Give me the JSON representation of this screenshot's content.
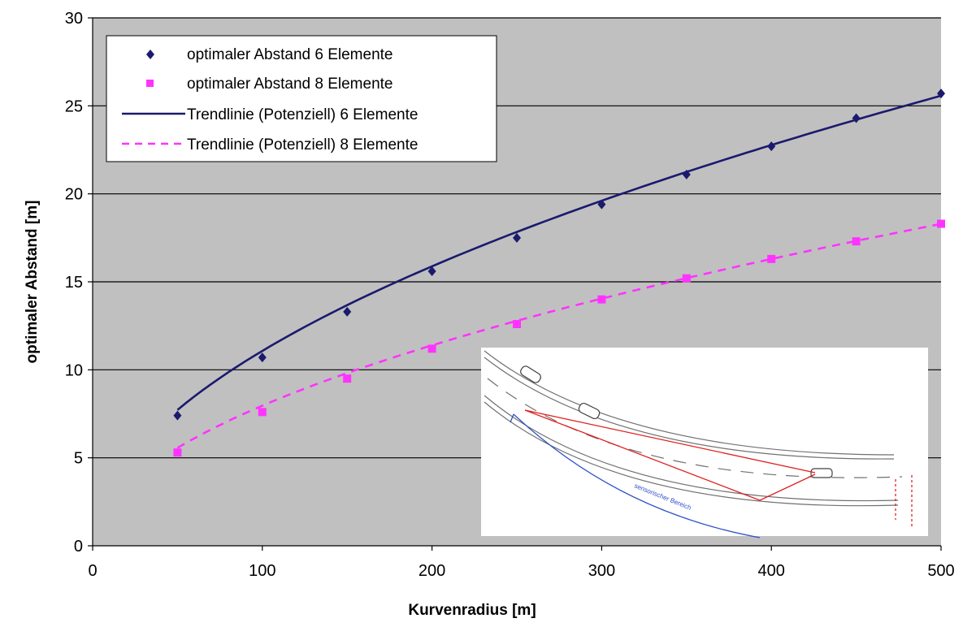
{
  "chart_data": {
    "type": "scatter",
    "title": "",
    "xlabel": "Kurvenradius [m]",
    "ylabel": "optimaler Abstand [m]",
    "xlim": [
      0,
      500
    ],
    "ylim": [
      0,
      30
    ],
    "x_ticks": [
      0,
      100,
      200,
      300,
      400,
      500
    ],
    "y_ticks": [
      0,
      5,
      10,
      15,
      20,
      25,
      30
    ],
    "grid": "horizontal",
    "plot_background": "#c0c0c0",
    "legend_position": "top-left",
    "x": [
      50,
      100,
      150,
      200,
      250,
      300,
      350,
      400,
      450,
      500
    ],
    "series": [
      {
        "name": "optimaler Abstand 6 Elemente",
        "kind": "markers",
        "marker": "diamond",
        "color": "#1a1a6e",
        "values": [
          7.4,
          10.7,
          13.3,
          15.6,
          17.5,
          19.4,
          21.1,
          22.7,
          24.3,
          25.7
        ]
      },
      {
        "name": "optimaler Abstand 8 Elemente",
        "kind": "markers",
        "marker": "square",
        "color": "#ff33ff",
        "values": [
          5.3,
          7.6,
          9.5,
          11.2,
          12.6,
          14.0,
          15.2,
          16.3,
          17.3,
          18.3
        ]
      },
      {
        "name": "Trendlinie (Potenziell) 6 Elemente",
        "kind": "trendline",
        "line_style": "solid",
        "color": "#1a1a6e",
        "power_fit": {
          "a": 1.01,
          "b": 0.52
        }
      },
      {
        "name": "Trendlinie (Potenziell) 8 Elemente",
        "kind": "trendline",
        "line_style": "dashed",
        "color": "#ff33ff",
        "power_fit": {
          "a": 0.736,
          "b": 0.517
        }
      }
    ],
    "inset": {
      "type": "image",
      "description_icon": "curved-road-sketch",
      "label_blue": "sensorischer Bereich"
    }
  }
}
